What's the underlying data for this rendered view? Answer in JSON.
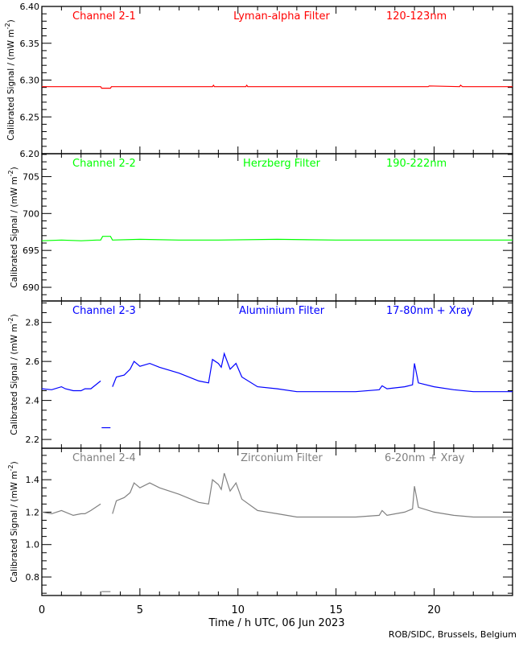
{
  "chart_data": [
    {
      "type": "line",
      "title": "Channel 2-1",
      "filter": "Lyman-alpha Filter",
      "band": "120-123nm",
      "color": "#ff0000",
      "ylabel": "Calibrated Signal / (mW m^-2)",
      "ylim": [
        6.2,
        6.4
      ],
      "yticks": [
        "6.20",
        "6.25",
        "6.30",
        "6.35",
        "6.40"
      ],
      "yminor": 0.01,
      "x": [
        0,
        3.0,
        3.05,
        3.5,
        3.55,
        8.7,
        8.75,
        8.8,
        10.4,
        10.45,
        10.5,
        19.7,
        19.75,
        21.3,
        21.35,
        21.45,
        24
      ],
      "values": [
        6.291,
        6.291,
        6.289,
        6.289,
        6.291,
        6.291,
        6.293,
        6.291,
        6.291,
        6.293,
        6.291,
        6.291,
        6.292,
        6.291,
        6.293,
        6.291,
        6.291
      ]
    },
    {
      "type": "line",
      "title": "Channel 2-2",
      "filter": "Herzberg Filter",
      "band": "190-222nm",
      "color": "#00ff00",
      "ylabel": "Calibrated Signal / (mW m^-2)",
      "ylim": [
        688.15,
        708.1
      ],
      "yticks": [
        "690",
        "695",
        "700",
        "705"
      ],
      "yminor": 1,
      "x": [
        0,
        1,
        2,
        2.8,
        3.0,
        3.1,
        3.5,
        3.6,
        5,
        7,
        9,
        12,
        15,
        18,
        21,
        24
      ],
      "values": [
        696.3,
        696.4,
        696.3,
        696.4,
        696.4,
        696.9,
        696.9,
        696.4,
        696.5,
        696.4,
        696.4,
        696.5,
        696.4,
        696.4,
        696.4,
        696.4
      ]
    },
    {
      "type": "line",
      "title": "Channel 2-3",
      "filter": "Aluminium Filter",
      "band": "17-80nm + Xray",
      "color": "#0000ff",
      "ylabel": "Calibrated Signal / (mW m^-2)",
      "ylim": [
        2.155,
        2.91
      ],
      "yticks": [
        "2.2",
        "2.4",
        "2.6",
        "2.8"
      ],
      "yminor": 0.05,
      "x": [
        0,
        0.5,
        1.0,
        1.2,
        1.6,
        2.0,
        2.2,
        2.5,
        3.0,
        null,
        3.05,
        3.5,
        null,
        3.6,
        3.8,
        4.2,
        4.5,
        4.7,
        5.0,
        5.5,
        6.0,
        7.0,
        8.0,
        8.5,
        8.7,
        9.0,
        9.15,
        9.3,
        9.6,
        9.9,
        10.2,
        11.0,
        12.0,
        13.0,
        16.0,
        17.2,
        17.35,
        17.6,
        18.5,
        18.9,
        19.0,
        19.2,
        20.0,
        21.0,
        22.0,
        24.0
      ],
      "values": [
        2.46,
        2.455,
        2.47,
        2.46,
        2.45,
        2.45,
        2.46,
        2.46,
        2.5,
        null,
        2.26,
        2.26,
        null,
        2.47,
        2.52,
        2.53,
        2.56,
        2.6,
        2.575,
        2.59,
        2.57,
        2.54,
        2.5,
        2.49,
        2.61,
        2.59,
        2.57,
        2.64,
        2.56,
        2.59,
        2.52,
        2.47,
        2.46,
        2.445,
        2.445,
        2.455,
        2.475,
        2.46,
        2.47,
        2.48,
        2.59,
        2.49,
        2.47,
        2.455,
        2.445,
        2.445
      ]
    },
    {
      "type": "line",
      "title": "Channel 2-4",
      "filter": "Zirconium Filter",
      "band": "6-20nm + Xray",
      "color": "#808080",
      "ylabel": "Calibrated Signal / (mW m^-2)",
      "ylim": [
        0.686,
        1.594
      ],
      "yticks": [
        "0.8",
        "1.0",
        "1.2",
        "1.4"
      ],
      "yminor": 0.05,
      "x": [
        0,
        0.5,
        1.0,
        1.2,
        1.6,
        2.0,
        2.2,
        2.5,
        3.0,
        null,
        3.05,
        3.5,
        null,
        3.6,
        3.8,
        4.2,
        4.5,
        4.7,
        5.0,
        5.5,
        6.0,
        7.0,
        8.0,
        8.5,
        8.7,
        9.0,
        9.15,
        9.3,
        9.6,
        9.9,
        10.2,
        11.0,
        12.0,
        13.0,
        16.0,
        17.2,
        17.35,
        17.6,
        18.5,
        18.9,
        19.0,
        19.2,
        20.0,
        21.0,
        22.0,
        24.0
      ],
      "values": [
        1.2,
        1.19,
        1.21,
        1.2,
        1.18,
        1.19,
        1.19,
        1.21,
        1.25,
        null,
        0.71,
        0.71,
        null,
        1.19,
        1.27,
        1.29,
        1.32,
        1.38,
        1.35,
        1.38,
        1.35,
        1.31,
        1.26,
        1.25,
        1.4,
        1.37,
        1.34,
        1.44,
        1.33,
        1.38,
        1.28,
        1.21,
        1.19,
        1.17,
        1.17,
        1.18,
        1.21,
        1.18,
        1.2,
        1.22,
        1.36,
        1.23,
        1.2,
        1.18,
        1.17,
        1.17
      ]
    }
  ],
  "xaxis": {
    "label": "Time / h UTC, 06 Jun 2023",
    "ticks": [
      "0",
      "5",
      "10",
      "15",
      "20"
    ],
    "xlim": [
      0,
      24
    ]
  },
  "ylabel_text": "Calibrated Signal / (mW m",
  "ylabel_sup": "-2",
  "ylabel_close": ")",
  "credit": "ROB/SIDC, Brussels, Belgium"
}
